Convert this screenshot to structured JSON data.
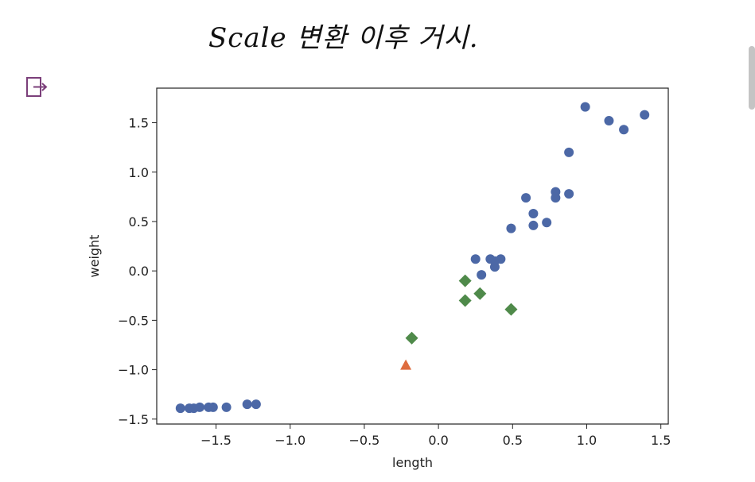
{
  "note": "Scale 변환 이후 거시.",
  "icons": {
    "output": "output-icon"
  },
  "colors": {
    "points": "#4c68a6",
    "diamond": "#4f8a4a",
    "triangle": "#de6c3e"
  },
  "chart_data": {
    "type": "scatter",
    "xlabel": "length",
    "ylabel": "weight",
    "xlim": [
      -1.9,
      1.55
    ],
    "ylim": [
      -1.55,
      1.85
    ],
    "xticks": [
      -1.5,
      -1.0,
      -0.5,
      0.0,
      0.5,
      1.0,
      1.5
    ],
    "yticks": [
      -1.5,
      -1.0,
      -0.5,
      0.0,
      0.5,
      1.0,
      1.5
    ],
    "xtick_labels": [
      "−1.5",
      "−1.0",
      "−0.5",
      "0.0",
      "0.5",
      "1.0",
      "1.5"
    ],
    "ytick_labels": [
      "−1.5",
      "−1.0",
      "−0.5",
      "0.0",
      "0.5",
      "1.0",
      "1.5"
    ],
    "grid": false,
    "series": [
      {
        "marker": "circle",
        "color": "#4c68a6",
        "x": [
          -1.74,
          -1.68,
          -1.65,
          -1.61,
          -1.55,
          -1.52,
          -1.43,
          -1.29,
          -1.23,
          0.25,
          0.29,
          0.35,
          0.38,
          0.42,
          0.38,
          0.49,
          0.59,
          0.64,
          0.64,
          0.73,
          0.79,
          0.79,
          0.88,
          0.88,
          0.99,
          1.15,
          1.25,
          1.39
        ],
        "y": [
          -1.39,
          -1.39,
          -1.39,
          -1.38,
          -1.38,
          -1.38,
          -1.38,
          -1.35,
          -1.35,
          0.12,
          -0.04,
          0.12,
          0.04,
          0.12,
          0.1,
          0.43,
          0.74,
          0.58,
          0.46,
          0.49,
          0.74,
          0.8,
          0.78,
          1.2,
          1.66,
          1.52,
          1.43,
          1.58
        ]
      },
      {
        "marker": "diamond",
        "color": "#4f8a4a",
        "x": [
          -0.18,
          0.18,
          0.18,
          0.28,
          0.49
        ],
        "y": [
          -0.68,
          -0.1,
          -0.3,
          -0.23,
          -0.39
        ]
      },
      {
        "marker": "triangle",
        "color": "#de6c3e",
        "x": [
          -0.22
        ],
        "y": [
          -0.96
        ]
      }
    ]
  }
}
